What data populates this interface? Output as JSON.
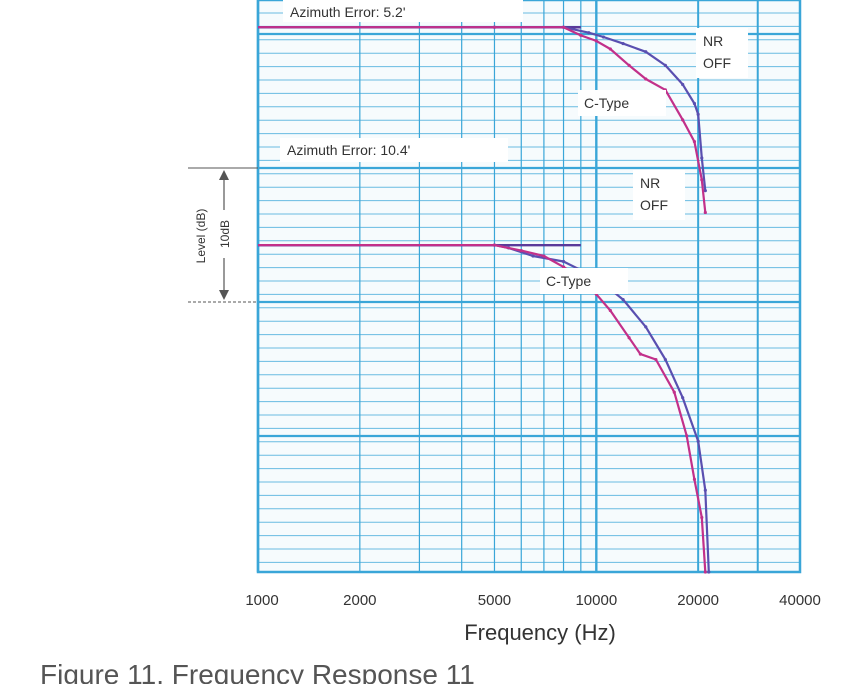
{
  "chart_data": {
    "type": "line",
    "xlabel": "Frequency (Hz)",
    "ylabel": "Level (dB)",
    "y_scale_note": "10dB",
    "x_scale": "log",
    "xlim": [
      1000,
      40000
    ],
    "x_ticks": [
      {
        "value": 1000,
        "label": "1000"
      },
      {
        "value": 2000,
        "label": "2000"
      },
      {
        "value": 5000,
        "label": "5000"
      },
      {
        "value": 10000,
        "label": "10000"
      },
      {
        "value": 20000,
        "label": "20000"
      },
      {
        "value": 40000,
        "label": "40000"
      }
    ],
    "ylim": [
      -100,
      5
    ],
    "grid": true,
    "groups": [
      {
        "label": "Azimuth Error: 5.2'",
        "series": [
          {
            "name": "NR OFF",
            "x": [
              1000,
              5000,
              8000,
              9500,
              10500,
              12000,
              14000,
              16000,
              18000,
              19500,
              20000,
              20500,
              21000
            ],
            "y": [
              0,
              0,
              0,
              -1,
              -1.8,
              -3,
              -4.5,
              -7,
              -10.5,
              -14,
              -16,
              -24,
              -30
            ]
          },
          {
            "name": "C-Type",
            "x": [
              1000,
              5000,
              8000,
              9000,
              10000,
              11000,
              12500,
              14000,
              16000,
              18000,
              19500,
              20500,
              21000
            ],
            "y": [
              0,
              0,
              0,
              -1.5,
              -2.5,
              -4,
              -7,
              -9.5,
              -11.5,
              -17,
              -21,
              -28,
              -34
            ]
          }
        ]
      },
      {
        "label": "Azimuth Error: 10.4'",
        "series": [
          {
            "name": "NR OFF",
            "x": [
              1000,
              5000,
              5500,
              6500,
              8000,
              10000,
              12000,
              14000,
              16000,
              18000,
              20000,
              21000,
              21500
            ],
            "y": [
              -40,
              -40,
              -40.5,
              -42,
              -43,
              -46,
              -50,
              -55,
              -61,
              -68,
              -76,
              -85,
              -100
            ]
          },
          {
            "name": "C-Type",
            "x": [
              1000,
              5000,
              6000,
              7000,
              8000,
              9000,
              10000,
              11000,
              12500,
              13500,
              15000,
              17000,
              18500,
              19500,
              20500,
              21000
            ],
            "y": [
              -40,
              -40,
              -41,
              -42,
              -44,
              -46,
              -49,
              -52,
              -57,
              -60,
              -61,
              -67,
              -75,
              -83,
              -90,
              -100
            ]
          }
        ]
      }
    ],
    "annotations": {
      "nr_off_top": [
        "NR",
        "OFF"
      ],
      "ctype_top": "C-Type",
      "nr_off_bottom": [
        "NR",
        "OFF"
      ],
      "ctype_bottom": "C-Type"
    },
    "colors": {
      "grid": "#3aa6d8",
      "nr_off": "#5a4fb0",
      "c_type": "#c2308a",
      "reference": "#5a3a9a"
    }
  },
  "caption": "Figure 11. Frequency Response 11"
}
